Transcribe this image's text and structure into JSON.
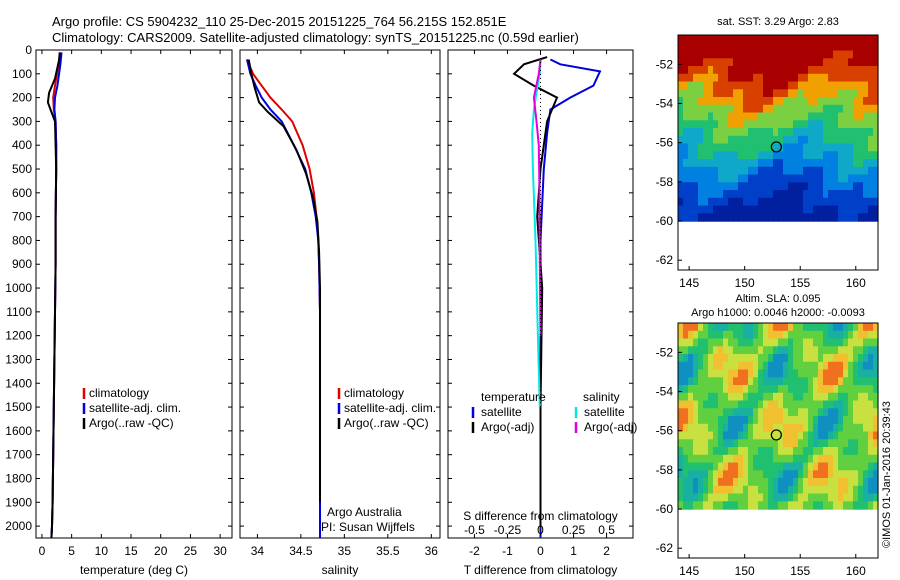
{
  "header": {
    "title_line1": "Argo profile: CS 5904232_110 25-Dec-2015 20151225_764 56.215S 152.851E",
    "title_line2": "Climatology: CARS2009. Satellite-adjusted climatology: synTS_20151225.nc (0.59d earlier)"
  },
  "stamp": "©IMOS 01-Jan-2016 20:39:43",
  "colors": {
    "climatology": "#e00000",
    "satellite": "#0000e0",
    "argo": "#000000",
    "sat_salinity": "#00e8e8",
    "argo_adj_salinity": "#e000e0"
  },
  "chart_data": [
    {
      "type": "line",
      "name": "temperature-profile",
      "xlabel": "temperature (deg C)",
      "ylabel": "",
      "xlim": [
        -1,
        32
      ],
      "ylim": [
        2050,
        0
      ],
      "y_reversed": true,
      "xticks": [
        0,
        5,
        10,
        15,
        20,
        25,
        30
      ],
      "yticks": [
        0,
        100,
        200,
        300,
        400,
        500,
        600,
        700,
        800,
        900,
        1000,
        1100,
        1200,
        1300,
        1400,
        1500,
        1600,
        1700,
        1800,
        1900,
        2000
      ],
      "legend": [
        "climatology",
        "satellite-adj. clim.",
        "Argo(..raw -QC)"
      ],
      "series": [
        {
          "name": "climatology",
          "color": "#e00000",
          "x": [
            3.0,
            2.8,
            2.2,
            1.9,
            2.0,
            2.3,
            2.4,
            2.4,
            2.3,
            2.3,
            2.2,
            2.1,
            2.0,
            1.9,
            1.8,
            1.7,
            1.6
          ],
          "y": [
            10,
            60,
            150,
            200,
            250,
            300,
            400,
            500,
            700,
            900,
            1100,
            1300,
            1500,
            1700,
            1900,
            2000,
            2050
          ]
        },
        {
          "name": "satellite-adj. clim.",
          "color": "#0000e0",
          "x": [
            3.3,
            3.1,
            2.6,
            2.2,
            2.1,
            2.3,
            2.4,
            2.4,
            2.3,
            2.3,
            2.2,
            2.1,
            2.0,
            1.9,
            1.8,
            1.7,
            1.6
          ],
          "y": [
            10,
            60,
            150,
            200,
            250,
            300,
            400,
            500,
            700,
            900,
            1100,
            1300,
            1500,
            1700,
            1900,
            2000,
            2050
          ]
        },
        {
          "name": "Argo(..raw -QC)",
          "color": "#000000",
          "x": [
            3.0,
            2.9,
            2.2,
            1.2,
            1.0,
            1.6,
            2.2,
            2.3,
            2.4,
            2.3,
            2.3,
            2.2,
            2.1,
            2.0,
            1.9,
            1.8,
            1.7,
            1.6
          ],
          "y": [
            10,
            40,
            120,
            180,
            220,
            260,
            300,
            400,
            500,
            700,
            900,
            1100,
            1300,
            1500,
            1700,
            1900,
            2000,
            2050
          ]
        }
      ]
    },
    {
      "type": "line",
      "name": "salinity-profile",
      "xlabel": "salinity",
      "xlim": [
        33.8,
        36.1
      ],
      "ylim": [
        2050,
        0
      ],
      "y_reversed": true,
      "xticks": [
        34,
        34.5,
        35,
        35.5,
        36
      ],
      "legend": [
        "climatology",
        "satellite-adj. clim.",
        "Argo(..raw -QC)"
      ],
      "annotations": [
        "Argo Australia",
        "PI: Susan Wijffels"
      ],
      "series": [
        {
          "name": "climatology",
          "color": "#e00000",
          "x": [
            33.88,
            33.95,
            34.05,
            34.15,
            34.28,
            34.4,
            34.52,
            34.6,
            34.65,
            34.68,
            34.7,
            34.71,
            34.72,
            34.72,
            34.72,
            34.72
          ],
          "y": [
            40,
            100,
            150,
            200,
            250,
            300,
            400,
            500,
            600,
            700,
            800,
            900,
            1100,
            1400,
            1800,
            2050
          ]
        },
        {
          "name": "satellite-adj. clim.",
          "color": "#0000e0",
          "x": [
            33.88,
            33.92,
            33.98,
            34.05,
            34.15,
            34.28,
            34.42,
            34.55,
            34.62,
            34.67,
            34.7,
            34.71,
            34.72,
            34.72,
            34.72,
            34.72
          ],
          "y": [
            40,
            100,
            150,
            200,
            250,
            300,
            400,
            500,
            600,
            700,
            800,
            900,
            1100,
            1400,
            1800,
            2050
          ]
        },
        {
          "name": "Argo(..raw -QC)",
          "color": "#000000",
          "x": [
            33.9,
            33.93,
            33.97,
            34.02,
            34.12,
            34.3,
            34.45,
            34.56,
            34.64,
            34.69,
            34.71,
            34.72,
            34.72,
            34.72
          ],
          "y": [
            40,
            100,
            160,
            220,
            260,
            320,
            420,
            520,
            620,
            720,
            850,
            1000,
            1400,
            1900
          ]
        }
      ]
    },
    {
      "type": "line",
      "name": "difference-profile",
      "xlabel": "T difference from climatology",
      "xlabel_top": "S difference from climatology",
      "xlim": [
        -2.8,
        2.8
      ],
      "ylim": [
        2050,
        0
      ],
      "y_reversed": true,
      "xticks": [
        -2,
        -1,
        0,
        1,
        2
      ],
      "xticks_s": [
        "-0.5",
        "-0.25",
        "0",
        "0.25",
        "0.5"
      ],
      "legend_temperature_title": "temperature",
      "legend_salinity_title": "salinity",
      "legend": [
        "satellite",
        "Argo(-adj)",
        "satellite",
        "Argo(-adj)"
      ],
      "series": [
        {
          "name": "satellite",
          "color": "#0000e0",
          "x": [
            0.3,
            0.6,
            1.8,
            1.6,
            0.9,
            0.3,
            0.2,
            0.1,
            0.0,
            0.0,
            0.0
          ],
          "y": [
            40,
            60,
            90,
            150,
            200,
            250,
            350,
            500,
            800,
            1400,
            2050
          ]
        },
        {
          "name": "Argo(-adj)",
          "color": "#000000",
          "x": [
            0.2,
            -0.5,
            -0.8,
            -0.2,
            0.5,
            0.2,
            0.0,
            -0.1,
            0.05,
            0.0,
            0.0
          ],
          "y": [
            30,
            60,
            100,
            150,
            200,
            300,
            500,
            700,
            1000,
            1500,
            2000
          ]
        },
        {
          "name": "satellite (salinity)",
          "color": "#00e8e8",
          "x": [
            0.0,
            -0.02,
            -0.12,
            -0.2,
            -0.25,
            -0.23,
            -0.15,
            -0.08,
            -0.02
          ],
          "y": [
            40,
            100,
            180,
            250,
            350,
            500,
            800,
            1200,
            1500
          ]
        },
        {
          "name": "Argo(-adj) (salinity)",
          "color": "#e000e0",
          "x": [
            0.0,
            -0.05,
            -0.2,
            -0.12,
            -0.05,
            -0.03,
            -0.02,
            0.0
          ],
          "y": [
            40,
            100,
            200,
            300,
            400,
            600,
            900,
            1200
          ]
        }
      ]
    },
    {
      "type": "heatmap",
      "name": "sst-map",
      "title": "sat. SST: 3.29 Argo: 2.83",
      "xlim": [
        144,
        162
      ],
      "ylim": [
        -62.5,
        -50.5
      ],
      "xticks": [
        145,
        150,
        155,
        160
      ],
      "yticks": [
        -52,
        -54,
        -56,
        -58,
        -60,
        -62
      ],
      "marker": {
        "lon": 152.851,
        "lat": -56.215
      }
    },
    {
      "type": "heatmap",
      "name": "sla-map",
      "title_line1": "Altim. SLA: 0.095",
      "title_line2": "Argo h1000: 0.0046 h2000: -0.0093",
      "xlim": [
        144,
        162
      ],
      "ylim": [
        -62.5,
        -50.5
      ],
      "xticks": [
        145,
        150,
        155,
        160
      ],
      "yticks": [
        -52,
        -54,
        -56,
        -58,
        -60,
        -62
      ],
      "marker": {
        "lon": 152.851,
        "lat": -56.215
      }
    }
  ]
}
